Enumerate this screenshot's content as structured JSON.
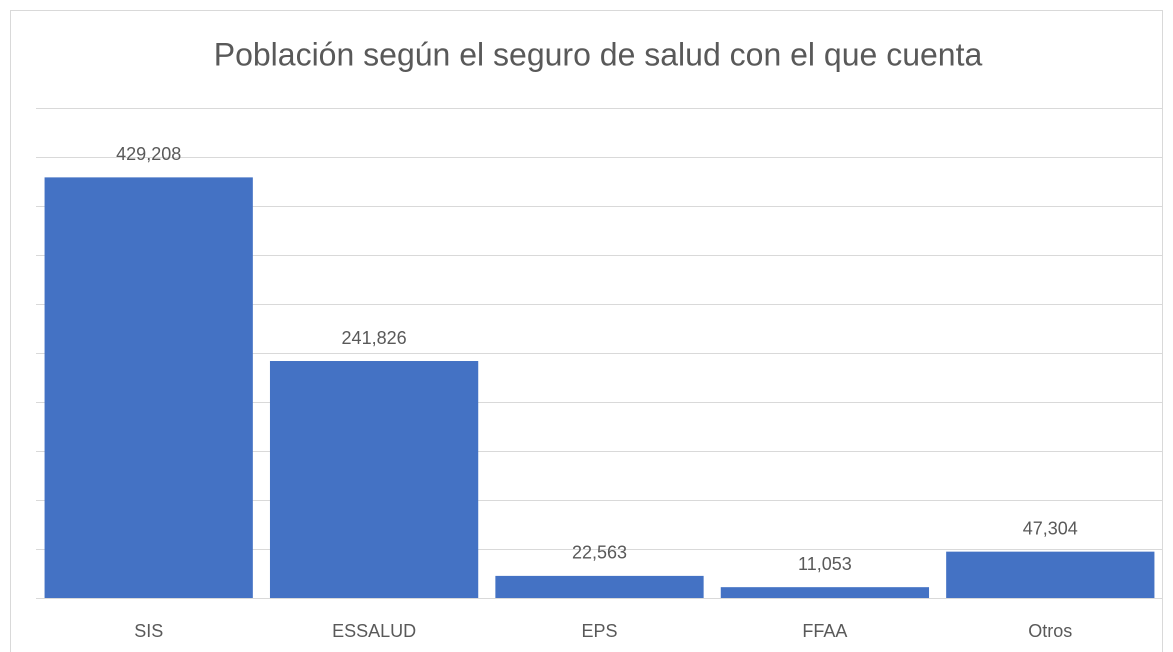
{
  "chart_data": {
    "type": "bar",
    "title": "Población según el seguro de salud con el que cuenta",
    "categories": [
      "SIS",
      "ESSALUD",
      "EPS",
      "FFAA",
      "Otros"
    ],
    "values": [
      429208,
      241826,
      22563,
      11053,
      47304
    ],
    "value_labels": [
      "429,208",
      "241,826",
      "22,563",
      "11,053",
      "47,304"
    ],
    "color": "#4472c4",
    "ylim": [
      0,
      500000
    ],
    "yticks": [
      0,
      50000,
      100000,
      150000,
      200000,
      250000,
      300000,
      350000,
      400000,
      450000,
      500000
    ],
    "show_ytick_labels": false,
    "grid": true
  }
}
